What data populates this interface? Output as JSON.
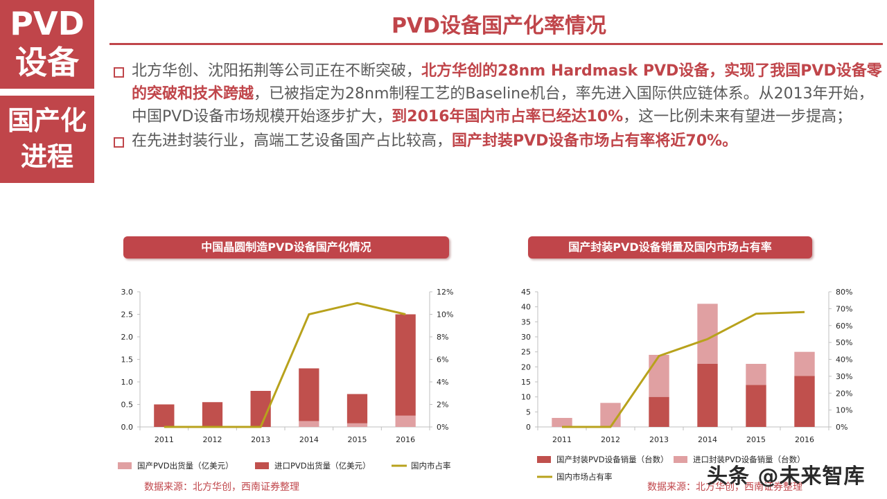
{
  "sidebar": {
    "top_line1": "PVD",
    "top_line2": "设备",
    "bottom_line1": "国产化",
    "bottom_line2": "进程"
  },
  "title": "PVD设备国产化率情况",
  "bullets": [
    [
      {
        "t": "北方华创、沈阳拓荆等公司正在不断突破，",
        "h": false
      },
      {
        "t": "北方华创的28nm Hardmask PVD设备，实现了我国PVD设备零的突破和技术跨越",
        "h": true
      },
      {
        "t": "，已被指定为28nm制程工艺的Baseline机台，率先进入国际供应链体系。从2013年开始，中国PVD设备市场规模开始逐步扩大，",
        "h": false
      },
      {
        "t": "到2016年国内市占率已经达10%",
        "h": true
      },
      {
        "t": "，这一比例未来有望进一步提高；",
        "h": false
      }
    ],
    [
      {
        "t": "在先进封装行业，高端工艺设备国产占比较高，",
        "h": false
      },
      {
        "t": "国产封装PVD设备市场占有率将近70%。",
        "h": true
      }
    ]
  ],
  "chart_left_title": "中国晶圆制造PVD设备国产化情况",
  "chart_right_title": "国产封装PVD设备销量及国内市场占有率",
  "source_left": "数据来源：北方华创，西南证券整理",
  "source_right": "数据来源：北方华创，西南证券整理",
  "watermark": "头条 @未来智库",
  "colors": {
    "accent": "#c0454a",
    "dark_bar": "#c0504d",
    "light_bar": "#e0a0a2",
    "line": "#b8a21c"
  },
  "chart_data": [
    {
      "type": "bar",
      "categories": [
        "2011",
        "2012",
        "2013",
        "2014",
        "2015",
        "2016"
      ],
      "series": [
        {
          "name": "国产PVD出货量（亿美元）",
          "kind": "bar",
          "values": [
            0,
            0,
            0,
            0.13,
            0.08,
            0.25
          ]
        },
        {
          "name": "进口PVD出货量（亿美元）",
          "kind": "bar",
          "values": [
            0.5,
            0.55,
            0.8,
            1.17,
            0.65,
            2.25
          ]
        },
        {
          "name": "国内市占率",
          "kind": "line",
          "axis": "right",
          "values": [
            0,
            0,
            0,
            10,
            11,
            10
          ]
        }
      ],
      "ylim": [
        0,
        3.0
      ],
      "y_ticks": [
        "0.0",
        "0.5",
        "1.0",
        "1.5",
        "2.0",
        "2.5",
        "3.0"
      ],
      "y2lim": [
        0,
        12
      ],
      "y2_ticks": [
        "0%",
        "2%",
        "4%",
        "6%",
        "8%",
        "10%",
        "12%"
      ],
      "legend": "bottom"
    },
    {
      "type": "bar",
      "categories": [
        "2011",
        "2012",
        "2013",
        "2014",
        "2015",
        "2016"
      ],
      "series": [
        {
          "name": "国产封装PVD设备销量（台数）",
          "kind": "bar",
          "values": [
            0,
            0,
            10,
            21,
            14,
            17
          ]
        },
        {
          "name": "进口封装PVD设备销量（台数）",
          "kind": "bar",
          "values": [
            3,
            8,
            14,
            20,
            7,
            8
          ]
        },
        {
          "name": "国内市场占有率",
          "kind": "line",
          "axis": "right",
          "values": [
            0,
            0,
            42,
            52,
            67,
            68
          ]
        }
      ],
      "ylim": [
        0,
        45
      ],
      "y_ticks": [
        "0",
        "5",
        "10",
        "15",
        "20",
        "25",
        "30",
        "35",
        "40",
        "45"
      ],
      "y2lim": [
        0,
        80
      ],
      "y2_ticks": [
        "0%",
        "10%",
        "20%",
        "30%",
        "40%",
        "50%",
        "60%",
        "70%",
        "80%"
      ],
      "legend": "bottom"
    }
  ]
}
